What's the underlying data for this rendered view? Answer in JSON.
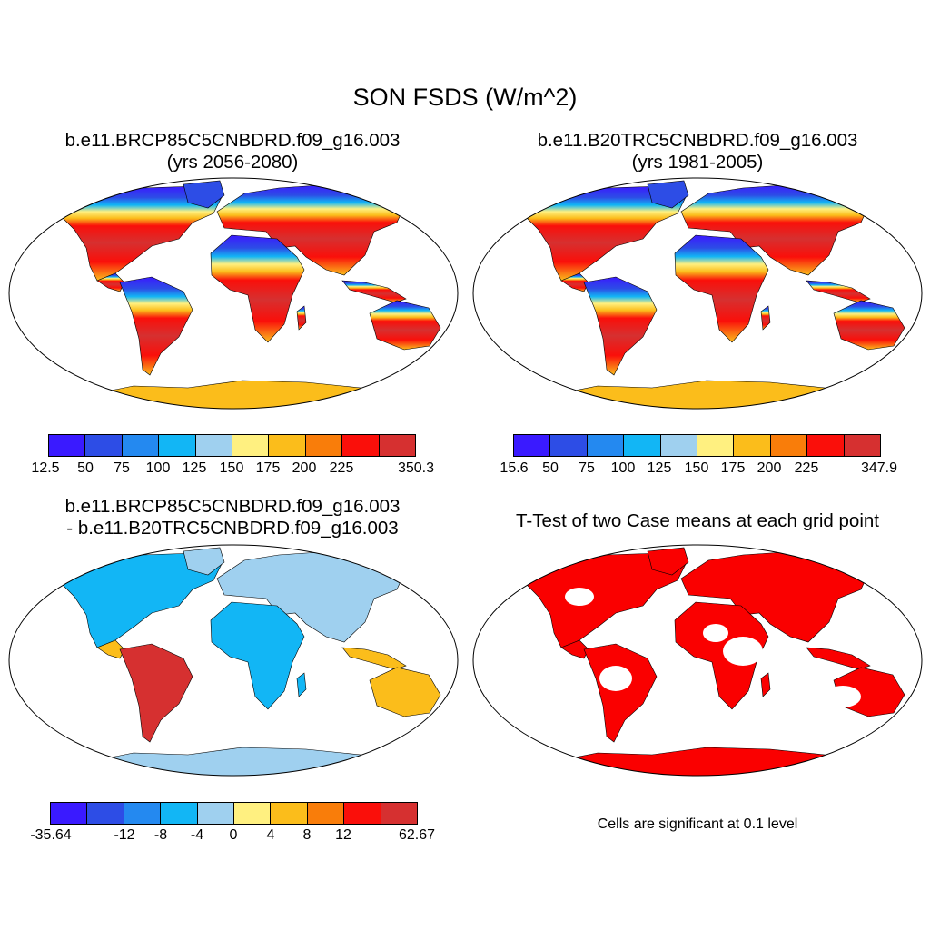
{
  "title": "SON FSDS (W/m^2)",
  "palette": [
    "#3a1aff",
    "#2d4de6",
    "#2489f0",
    "#12b6f5",
    "#9fd0ef",
    "#fff080",
    "#fbbd1b",
    "#f97d0a",
    "#fa0f0a",
    "#d63030"
  ],
  "significance_color": "#fa0000",
  "panels": [
    {
      "title_line1": "b.e11.BRCP85C5CNBDRD.f09_g16.003",
      "title_line2": "(yrs 2056-2080)",
      "colorbar_labels": [
        "12.5",
        "50",
        "75",
        "100",
        "125",
        "150",
        "175",
        "200",
        "225",
        "350.3"
      ]
    },
    {
      "title_line1": "b.e11.B20TRC5CNBDRD.f09_g16.003",
      "title_line2": "(yrs 1981-2005)",
      "colorbar_labels": [
        "15.6",
        "50",
        "75",
        "100",
        "125",
        "150",
        "175",
        "200",
        "225",
        "347.9"
      ]
    },
    {
      "title_line1": "b.e11.BRCP85C5CNBDRD.f09_g16.003",
      "title_line2": "- b.e11.B20TRC5CNBDRD.f09_g16.003",
      "colorbar_labels": [
        "-35.64",
        "-12",
        "-8",
        "-4",
        "0",
        "4",
        "8",
        "12",
        "62.67"
      ]
    },
    {
      "title_line1": "T-Test of two Case means at each grid point",
      "note": "Cells are significant at 0.1 level"
    }
  ]
}
